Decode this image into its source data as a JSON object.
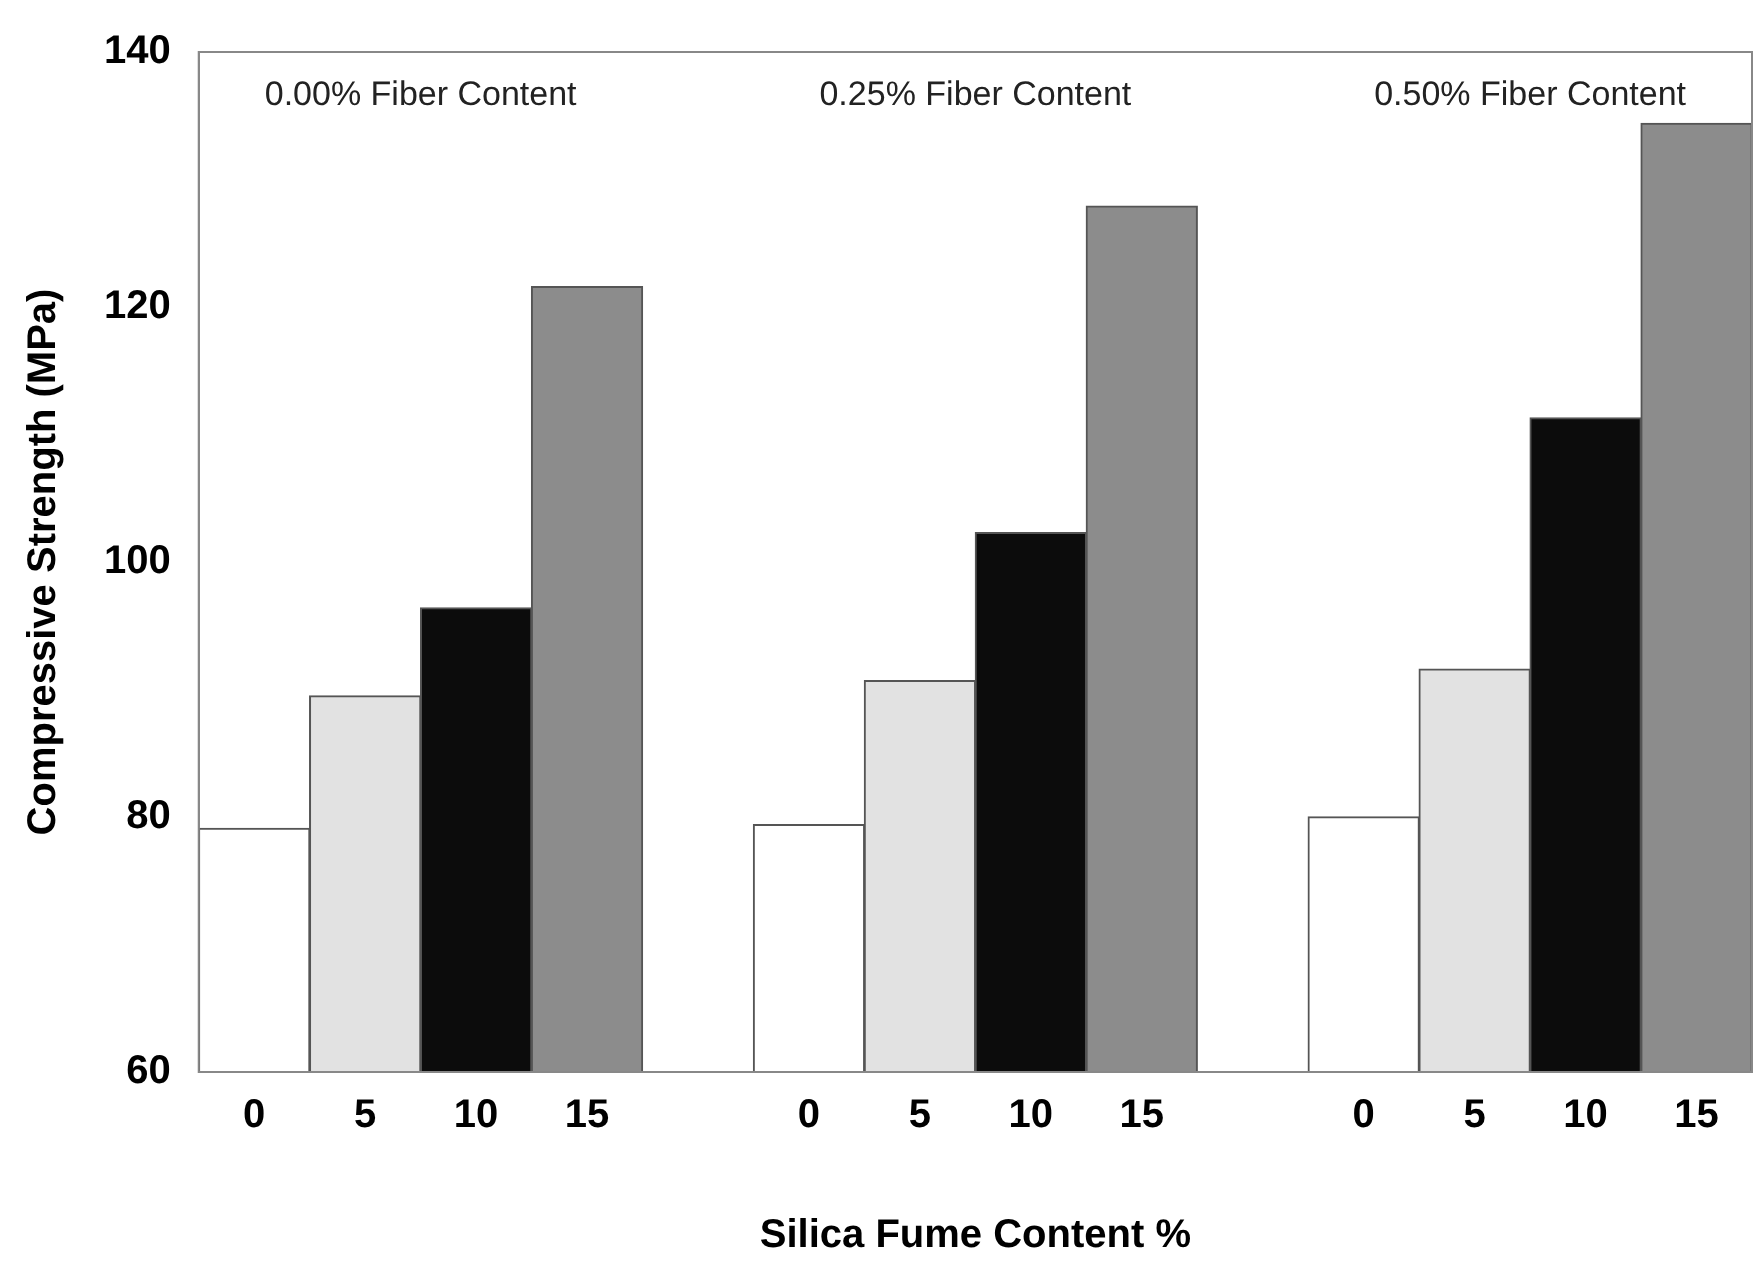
{
  "chart_data": {
    "type": "bar",
    "xlabel": "Silica Fume Content %",
    "ylabel": "Compressive Strength (MPa)",
    "categories": [
      "0",
      "5",
      "10",
      "15",
      null,
      "0",
      "5",
      "10",
      "15",
      null,
      "0",
      "5",
      "10",
      "15"
    ],
    "values": [
      79.1,
      89.5,
      96.4,
      121.6,
      null,
      79.4,
      90.7,
      102.3,
      127.9,
      null,
      80.0,
      91.6,
      111.3,
      134.4
    ],
    "colors": [
      "#ffffff",
      "#e2e2e2",
      "#0c0c0c",
      "#8c8c8c",
      "#ffffff",
      "#ffffff",
      "#e2e2e2",
      "#0c0c0c",
      "#8c8c8c",
      "#ffffff",
      "#ffffff",
      "#e2e2e2",
      "#0c0c0c",
      "#8c8c8c"
    ],
    "ylim": [
      60,
      140
    ],
    "yticks": [
      60,
      80,
      100,
      120,
      140
    ],
    "grid": false,
    "legend": false,
    "annotations": [
      "0.00% Fiber Content",
      "0.25% Fiber Content",
      "0.50% Fiber Content"
    ]
  }
}
